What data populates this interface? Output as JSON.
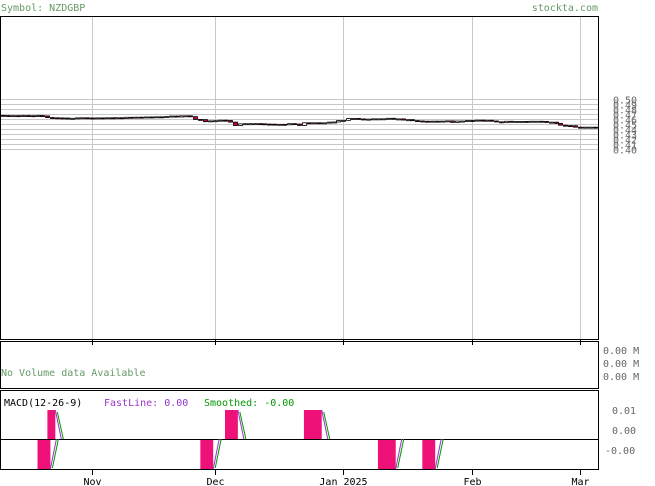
{
  "header": {
    "symbol_label": "Symbol: NZDGBP",
    "site": "stockta.com"
  },
  "colors": {
    "header_text": "#669966",
    "up_body": "#ffffff",
    "down_body": "#cc0033",
    "macd_bar": "#ee1177",
    "fast_line": "#9933cc",
    "smoothed_line": "#009900",
    "grid": "#c8c8c8",
    "axis_text": "#666666"
  },
  "volume": {
    "message": "No Volume data Available",
    "ticks": [
      "0.00 M",
      "0.00 M",
      "0.00 M"
    ]
  },
  "macd": {
    "title": "MACD(12-26-9)",
    "fast_label": "FastLine: 0.00",
    "smoothed_label": "Smoothed: -0.00",
    "ticks": [
      "0.01",
      "0.00",
      "-0.00"
    ]
  },
  "chart_data": {
    "type": "candlestick",
    "title": "Symbol: NZDGBP",
    "y_ticks": [
      0.4,
      0.41,
      0.42,
      0.43,
      0.44,
      0.45,
      0.46,
      0.47,
      0.48,
      0.49,
      0.5
    ],
    "y_tick_labels": [
      "0.40",
      "0.41",
      "0.42",
      "0.43",
      "0.44",
      "0.45",
      "0.46",
      "0.47",
      "0.48",
      "0.49",
      "0.50"
    ],
    "x_tick_labels": [
      "Nov",
      "Dec",
      "Jan 2025",
      "Feb",
      "Mar"
    ],
    "x_tick_session_index": [
      18,
      43,
      69,
      95,
      117
    ],
    "sessions": 121,
    "ohlc_close": [
      0.4668,
      0.4664,
      0.4666,
      0.4662,
      0.4668,
      0.4665,
      0.4658,
      0.4668,
      0.4661,
      0.4628,
      0.4624,
      0.4621,
      0.4619,
      0.4606,
      0.4614,
      0.4622,
      0.4624,
      0.462,
      0.4619,
      0.4622,
      0.4618,
      0.4624,
      0.4618,
      0.4625,
      0.461,
      0.4634,
      0.4628,
      0.4636,
      0.4631,
      0.464,
      0.4629,
      0.4643,
      0.4637,
      0.4647,
      0.4658,
      0.464,
      0.4663,
      0.4663,
      0.4646,
      0.4592,
      0.4587,
      0.4547,
      0.4563,
      0.4566,
      0.4576,
      0.457,
      0.4538,
      0.4471,
      0.4504,
      0.4507,
      0.4507,
      0.4508,
      0.4505,
      0.4499,
      0.4498,
      0.4493,
      0.4495,
      0.4485,
      0.4508,
      0.45,
      0.4473,
      0.4525,
      0.4524,
      0.4525,
      0.4524,
      0.4524,
      0.4538,
      0.4541,
      0.4568,
      0.4573,
      0.4608,
      0.4612,
      0.4601,
      0.4595,
      0.4597,
      0.4603,
      0.4603,
      0.4604,
      0.4614,
      0.4595,
      0.4602,
      0.4579,
      0.4586,
      0.4568,
      0.4561,
      0.4556,
      0.4548,
      0.4557,
      0.4547,
      0.4558,
      0.4563,
      0.4533,
      0.4559,
      0.4559,
      0.457,
      0.4568,
      0.4577,
      0.4575,
      0.4575,
      0.4561,
      0.4544,
      0.4528,
      0.4555,
      0.4552,
      0.4552,
      0.4552,
      0.4547,
      0.4555,
      0.4555,
      0.4553,
      0.4532,
      0.4537,
      0.4513,
      0.4477,
      0.4469,
      0.4467,
      0.4438,
      0.4435,
      0.4438,
      0.4438,
      0.4418
    ],
    "macd_histogram_segments": [
      {
        "start": 9,
        "end": 10,
        "sign": "positive"
      },
      {
        "start": 7,
        "end": 9,
        "sign": "negative"
      },
      {
        "start": 40,
        "end": 42,
        "sign": "negative"
      },
      {
        "start": 45,
        "end": 47,
        "sign": "positive"
      },
      {
        "start": 61,
        "end": 64,
        "sign": "positive"
      },
      {
        "start": 76,
        "end": 79,
        "sign": "negative"
      },
      {
        "start": 85,
        "end": 87,
        "sign": "negative"
      }
    ]
  }
}
